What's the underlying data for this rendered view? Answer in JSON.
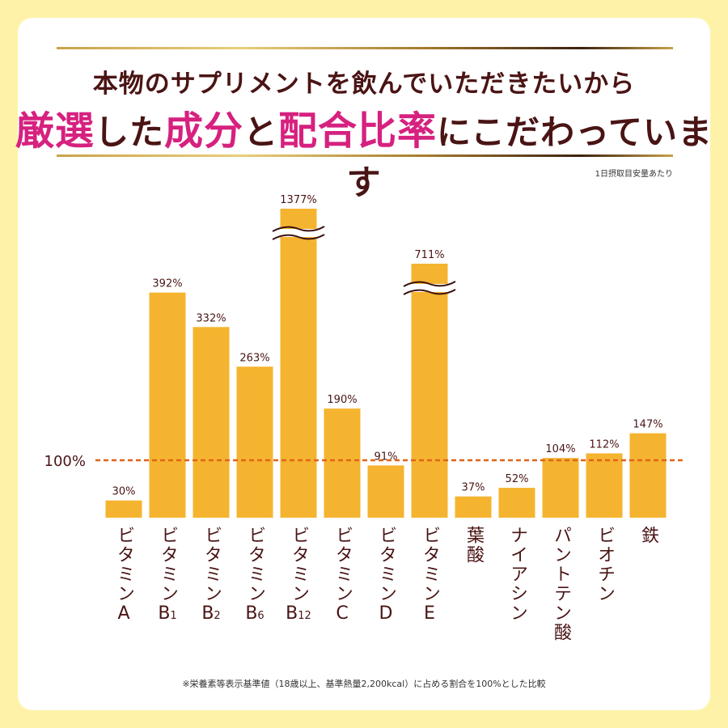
{
  "header": {
    "line1": "本物のサプリメントを飲んでいただきたいから",
    "line2_parts": [
      {
        "text": "厳選",
        "highlight": true
      },
      {
        "text": "した",
        "highlight": false
      },
      {
        "text": "成分",
        "highlight": true
      },
      {
        "text": "と",
        "highlight": false
      },
      {
        "text": "配合比率",
        "highlight": true
      },
      {
        "text": "にこだわっています",
        "highlight": false
      }
    ]
  },
  "note_top": "1日摂取目安量あたり",
  "footnote": "※栄養素等表示基準値（18歳以上、基準熱量2,200kcal）に占める割合を100%とした比較",
  "colors": {
    "bar": "#f5b42f",
    "reference_line": "#e0631a",
    "text": "#4a1414",
    "highlight": "#d6217f",
    "background": "#fdf2a8"
  },
  "chart_data": {
    "type": "bar",
    "reference_line": {
      "value": 100,
      "label": "100%",
      "style": "dashed"
    },
    "categories": [
      {
        "main": "ビタミン",
        "suffix": "A",
        "sub": ""
      },
      {
        "main": "ビタミン",
        "suffix": "B",
        "sub": "1"
      },
      {
        "main": "ビタミン",
        "suffix": "B",
        "sub": "2"
      },
      {
        "main": "ビタミン",
        "suffix": "B",
        "sub": "6"
      },
      {
        "main": "ビタミン",
        "suffix": "B",
        "sub": "12"
      },
      {
        "main": "ビタミン",
        "suffix": "C",
        "sub": ""
      },
      {
        "main": "ビタミン",
        "suffix": "D",
        "sub": ""
      },
      {
        "main": "ビタミン",
        "suffix": "E",
        "sub": ""
      },
      {
        "main": "葉酸",
        "suffix": "",
        "sub": ""
      },
      {
        "main": "ナイアシン",
        "suffix": "",
        "sub": ""
      },
      {
        "main": "パントテン酸",
        "suffix": "",
        "sub": ""
      },
      {
        "main": "ビオチン",
        "suffix": "",
        "sub": ""
      },
      {
        "main": "鉄",
        "suffix": "",
        "sub": ""
      }
    ],
    "values": [
      30,
      392,
      332,
      263,
      1377,
      190,
      91,
      711,
      37,
      52,
      104,
      112,
      147
    ],
    "value_labels": [
      "30%",
      "392%",
      "332%",
      "263%",
      "1377%",
      "190%",
      "91%",
      "711%",
      "37%",
      "52%",
      "104%",
      "112%",
      "147%"
    ],
    "broken_axis_bars": [
      4,
      7
    ],
    "unit": "%"
  }
}
